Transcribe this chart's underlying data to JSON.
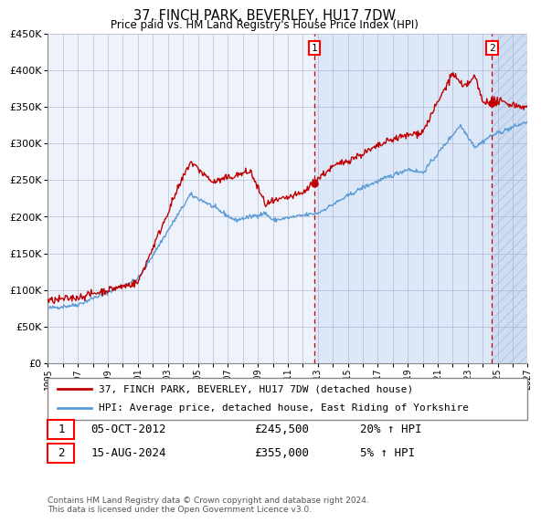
{
  "title": "37, FINCH PARK, BEVERLEY, HU17 7DW",
  "subtitle": "Price paid vs. HM Land Registry's House Price Index (HPI)",
  "x_start_year": 1995,
  "x_end_year": 2027,
  "y_min": 0,
  "y_max": 450000,
  "y_ticks": [
    0,
    50000,
    100000,
    150000,
    200000,
    250000,
    300000,
    350000,
    400000,
    450000
  ],
  "hpi_color": "#5b9bd5",
  "price_color": "#c00000",
  "sale1_year": 2012.75,
  "sale1_price": 245500,
  "sale2_year": 2024.62,
  "sale2_price": 355000,
  "legend_label1": "37, FINCH PARK, BEVERLEY, HU17 7DW (detached house)",
  "legend_label2": "HPI: Average price, detached house, East Riding of Yorkshire",
  "annotation1_label": "1",
  "annotation1_date": "05-OCT-2012",
  "annotation1_price": "£245,500",
  "annotation1_hpi": "20% ↑ HPI",
  "annotation2_label": "2",
  "annotation2_date": "15-AUG-2024",
  "annotation2_price": "£355,000",
  "annotation2_hpi": "5% ↑ HPI",
  "footnote": "Contains HM Land Registry data © Crown copyright and database right 2024.\nThis data is licensed under the Open Government Licence v3.0.",
  "background_color": "#ffffff",
  "plot_bg_color": "#eef3fb",
  "shade_between_color": "#dce8f8",
  "hatch_color": "#c8d8f0",
  "grid_color": "#aaaacc"
}
